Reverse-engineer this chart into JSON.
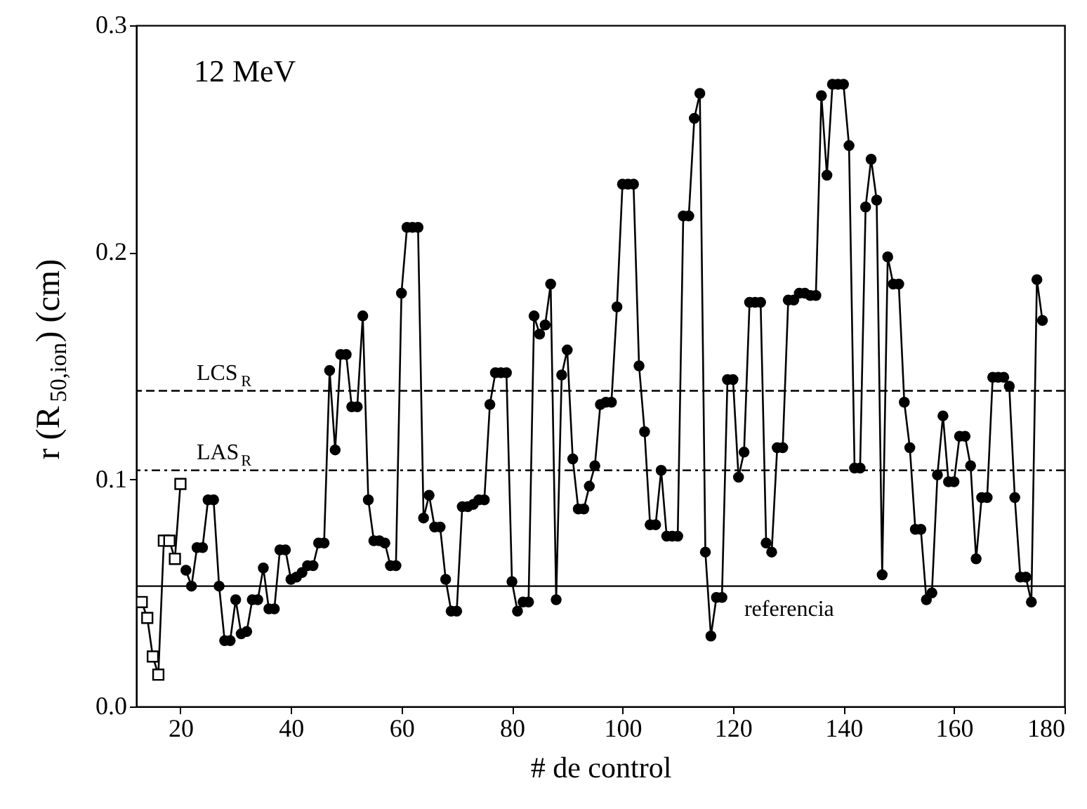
{
  "chart_data": {
    "type": "line",
    "xlabel": "# de control",
    "ylabel": "r (R$_{50,ion}$) (cm)",
    "annotations": [
      "12 MeV"
    ],
    "xlim": [
      12,
      180
    ],
    "xticks": [
      20,
      40,
      60,
      80,
      100,
      120,
      140,
      160,
      180
    ],
    "ylim": [
      0,
      0.3
    ],
    "yticks": [
      {
        "value": 0,
        "label": "0.0"
      },
      0.1,
      0.2,
      0.3
    ],
    "grid": false,
    "line_style": "solid",
    "series": [
      {
        "color": "#000000",
        "marker": "square",
        "x": [
          13,
          14,
          15,
          16,
          17,
          18,
          19,
          20
        ],
        "values": [
          0.046,
          0.039,
          0.022,
          0.014,
          0.073,
          0.073,
          0.065,
          0.098
        ]
      },
      {
        "color": "#000000",
        "marker": "circle",
        "x": [
          21,
          22,
          23,
          24,
          25,
          26,
          27,
          28,
          29,
          30,
          31,
          32,
          33,
          34,
          35,
          36,
          37,
          38,
          39,
          40,
          41,
          42,
          43,
          44,
          45,
          46,
          47,
          48,
          49,
          50,
          51,
          52,
          53,
          54,
          55,
          56,
          57,
          58,
          59,
          60,
          61,
          62,
          63,
          64,
          65,
          66,
          67,
          68,
          69,
          70,
          71,
          72,
          73,
          74,
          75,
          76,
          77,
          78,
          79,
          80,
          81,
          82,
          83,
          84,
          85,
          86,
          87,
          88,
          89,
          90,
          91,
          92,
          93,
          94,
          95,
          96,
          97,
          98,
          99,
          100,
          101,
          102,
          103,
          104,
          105,
          106,
          107,
          108,
          109,
          110,
          111,
          112,
          113,
          114,
          115,
          116,
          117,
          118,
          119,
          120,
          121,
          122,
          123,
          124,
          125,
          126,
          127,
          128,
          129,
          130,
          131,
          132,
          133,
          134,
          135,
          136,
          137,
          138,
          139,
          140,
          141,
          142,
          143,
          144,
          145,
          146,
          147,
          148,
          149,
          150,
          151,
          152,
          153,
          154,
          155,
          156,
          157,
          158,
          159,
          160,
          161,
          162,
          163,
          164,
          165,
          166,
          167,
          168,
          169,
          170,
          171,
          172,
          173,
          174,
          175,
          176
        ],
        "values": [
          0.06,
          0.053,
          0.07,
          0.07,
          0.091,
          0.091,
          0.053,
          0.029,
          0.029,
          0.047,
          0.032,
          0.033,
          0.047,
          0.047,
          0.061,
          0.043,
          0.043,
          0.069,
          0.069,
          0.056,
          0.057,
          0.059,
          0.062,
          0.062,
          0.072,
          0.072,
          0.148,
          0.113,
          0.155,
          0.155,
          0.132,
          0.132,
          0.172,
          0.091,
          0.073,
          0.073,
          0.072,
          0.062,
          0.062,
          0.182,
          0.211,
          0.211,
          0.211,
          0.083,
          0.093,
          0.079,
          0.079,
          0.056,
          0.042,
          0.042,
          0.088,
          0.088,
          0.089,
          0.091,
          0.091,
          0.133,
          0.147,
          0.147,
          0.147,
          0.055,
          0.042,
          0.046,
          0.046,
          0.172,
          0.164,
          0.168,
          0.186,
          0.047,
          0.146,
          0.157,
          0.109,
          0.087,
          0.087,
          0.097,
          0.106,
          0.133,
          0.134,
          0.134,
          0.176,
          0.23,
          0.23,
          0.23,
          0.15,
          0.121,
          0.08,
          0.08,
          0.104,
          0.075,
          0.075,
          0.075,
          0.216,
          0.216,
          0.259,
          0.27,
          0.068,
          0.031,
          0.048,
          0.048,
          0.144,
          0.144,
          0.101,
          0.112,
          0.178,
          0.178,
          0.178,
          0.072,
          0.068,
          0.114,
          0.114,
          0.179,
          0.179,
          0.182,
          0.182,
          0.181,
          0.181,
          0.269,
          0.234,
          0.274,
          0.274,
          0.274,
          0.247,
          0.105,
          0.105,
          0.22,
          0.241,
          0.223,
          0.058,
          0.198,
          0.186,
          0.186,
          0.134,
          0.114,
          0.078,
          0.078,
          0.047,
          0.05,
          0.102,
          0.128,
          0.099,
          0.099,
          0.119,
          0.119,
          0.106,
          0.065,
          0.092,
          0.092,
          0.145,
          0.145,
          0.145,
          0.141,
          0.092,
          0.057,
          0.057,
          0.046,
          0.188,
          0.17
        ]
      }
    ],
    "ref_lines": [
      {
        "axis": "y",
        "value": 0.139,
        "label": "LCS$_{R}$",
        "line_style": "dashed",
        "color": "#000000"
      },
      {
        "axis": "y",
        "value": 0.104,
        "label": "LAS$_{R}$",
        "line_style": "dashdot",
        "color": "#000000"
      },
      {
        "axis": "y",
        "value": 0.053,
        "label": "referencia",
        "line_style": "solid",
        "color": "#000000"
      }
    ]
  }
}
